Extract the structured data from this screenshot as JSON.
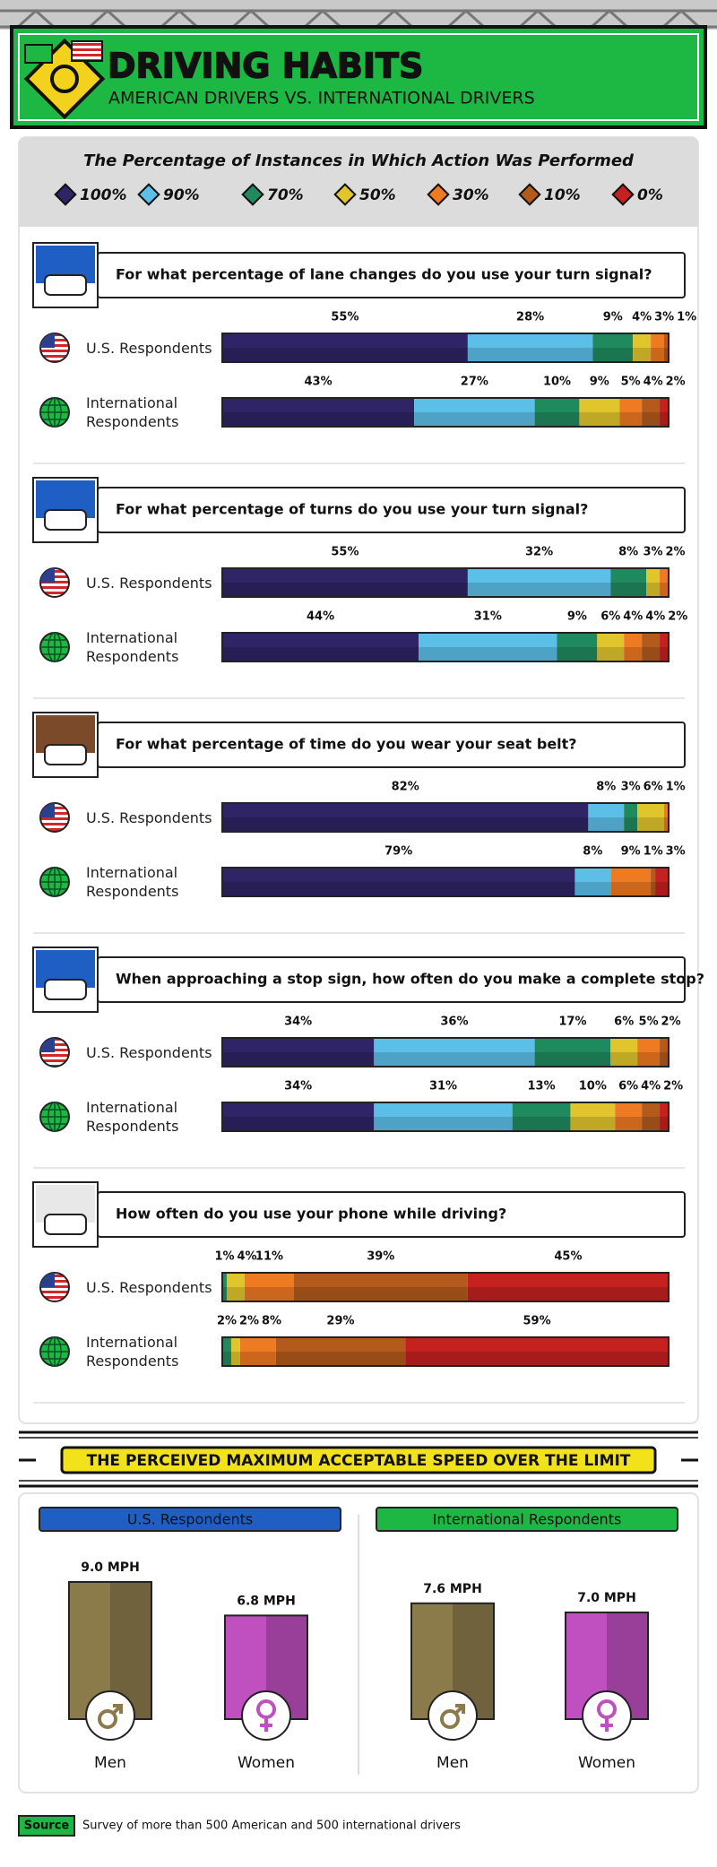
{
  "header": {
    "title": "DRIVING HABITS",
    "subtitle": "AMERICAN DRIVERS VS. INTERNATIONAL DRIVERS"
  },
  "section_title": "THE PERCEIVED MAXIMUM ACCEPTABLE SPEED OVER THE LIMIT",
  "source": {
    "label": "Source",
    "text": "Survey of more than 500 American and 500 international drivers"
  },
  "chart_data": [
    {
      "type": "stacked",
      "title": "The Percentage of Instances in Which Action Was Performed",
      "series": [
        {
          "name": "100%",
          "color": "#2e2466"
        },
        {
          "name": "90%",
          "color": "#5bbfe8"
        },
        {
          "name": "70%",
          "color": "#1f8a5e"
        },
        {
          "name": "50%",
          "color": "#e0c62c"
        },
        {
          "name": "30%",
          "color": "#ee7a22"
        },
        {
          "name": "10%",
          "color": "#b35a1c"
        },
        {
          "name": "0%",
          "color": "#c4211f"
        }
      ],
      "categories": [
        "U.S. Respondents",
        "International Respondents"
      ],
      "panels": [
        {
          "question": "For what percentage of lane changes do you use your turn signal?",
          "values": [
            [
              55,
              28,
              9,
              4,
              3,
              1,
              null
            ],
            [
              43,
              27,
              10,
              9,
              5,
              4,
              2
            ]
          ],
          "value_labels": [
            [
              "55%",
              "28%",
              "9%",
              "4%",
              "3%",
              "1%",
              null
            ],
            [
              "43%",
              "27%",
              "10%",
              "9%",
              "5%",
              "4%",
              "2%"
            ]
          ]
        },
        {
          "question": "For what percentage of turns do you use your turn signal?",
          "values": [
            [
              55,
              32,
              8,
              3,
              2,
              null,
              null
            ],
            [
              44,
              31,
              9,
              6,
              4,
              4,
              2
            ]
          ],
          "value_labels": [
            [
              "55%",
              "32%",
              "8%",
              "3%",
              "2%",
              null,
              null
            ],
            [
              "44%",
              "31%",
              "9%",
              "6%",
              "4%",
              "4%",
              "2%"
            ]
          ]
        },
        {
          "question": "For what percentage of time do you wear your seat belt?",
          "values": [
            [
              82,
              8,
              3,
              6,
              1,
              null,
              null
            ],
            [
              79,
              8,
              null,
              null,
              9,
              1,
              3
            ]
          ],
          "value_labels": [
            [
              "82%",
              "8%",
              "3%",
              "6%",
              "1%",
              null,
              null
            ],
            [
              "79%",
              "8%",
              null,
              null,
              "9%",
              "1%",
              "3%"
            ]
          ]
        },
        {
          "question": "When approaching a stop sign, how often do you make a complete stop?",
          "values": [
            [
              34,
              36,
              17,
              6,
              5,
              2,
              null
            ],
            [
              34,
              31,
              13,
              10,
              6,
              4,
              2
            ]
          ],
          "value_labels": [
            [
              "34%",
              "36%",
              "17%",
              "6%",
              "5%",
              "2%",
              null
            ],
            [
              "34%",
              "31%",
              "13%",
              "10%",
              "6%",
              "4%",
              "2%"
            ]
          ]
        },
        {
          "question": "How often do you use your phone while driving?",
          "values": [
            [
              null,
              null,
              1,
              4,
              11,
              39,
              45
            ],
            [
              null,
              null,
              2,
              2,
              8,
              29,
              59
            ]
          ],
          "value_labels": [
            [
              null,
              null,
              "1%",
              "4%",
              "11%",
              "39%",
              "45%"
            ],
            [
              null,
              null,
              "2%",
              "2%",
              "8%",
              "29%",
              "59%"
            ]
          ]
        }
      ]
    },
    {
      "type": "bar",
      "title": "U.S. Respondents",
      "header_color": "#1f5fc4",
      "categories": [
        "Men",
        "Women"
      ],
      "values": [
        9.0,
        6.8
      ],
      "value_labels": [
        "9.0 MPH",
        "6.8 MPH"
      ],
      "colors": [
        "#8b7b4b",
        "#c04fc0"
      ]
    },
    {
      "type": "bar",
      "title": "International Respondents",
      "header_color": "#1db843",
      "categories": [
        "Men",
        "Women"
      ],
      "values": [
        7.6,
        7.0
      ],
      "value_labels": [
        "7.6 MPH",
        "7.0 MPH"
      ],
      "colors": [
        "#8b7b4b",
        "#c04fc0"
      ]
    }
  ]
}
